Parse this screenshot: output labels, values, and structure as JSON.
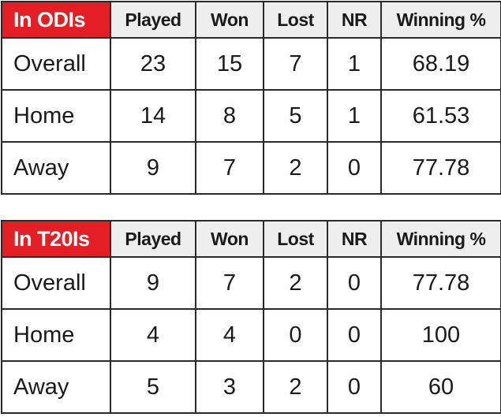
{
  "chart_data": [
    {
      "type": "table",
      "title": "In ODIs",
      "columns": [
        "Played",
        "Won",
        "Lost",
        "NR",
        "Winning %"
      ],
      "rows": [
        {
          "label": "Overall",
          "values": [
            "23",
            "15",
            "7",
            "1",
            "68.19"
          ]
        },
        {
          "label": "Home",
          "values": [
            "14",
            "8",
            "5",
            "1",
            "61.53"
          ]
        },
        {
          "label": "Away",
          "values": [
            "9",
            "7",
            "2",
            "0",
            "77.78"
          ]
        }
      ]
    },
    {
      "type": "table",
      "title": "In T20Is",
      "columns": [
        "Played",
        "Won",
        "Lost",
        "NR",
        "Winning %"
      ],
      "rows": [
        {
          "label": "Overall",
          "values": [
            "9",
            "7",
            "2",
            "0",
            "77.78"
          ]
        },
        {
          "label": "Home",
          "values": [
            "4",
            "4",
            "0",
            "0",
            "100"
          ]
        },
        {
          "label": "Away",
          "values": [
            "5",
            "3",
            "2",
            "0",
            "60"
          ]
        }
      ]
    }
  ],
  "colors": {
    "title_bg": "#e31e24",
    "header_bg": "#eeeeee",
    "border": "#2a2a2a"
  }
}
